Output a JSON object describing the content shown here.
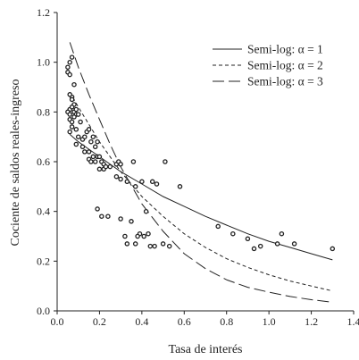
{
  "chart_data": {
    "type": "scatter",
    "title": "",
    "xlabel": "Tasa de interés",
    "ylabel": "Cociente de saldos reales-ingreso",
    "xlim": [
      0,
      1.4
    ],
    "ylim": [
      0,
      1.2
    ],
    "x_ticks": [
      "0.0",
      "0.2",
      "0.4",
      "0.6",
      "0.8",
      "1.0",
      "1.2",
      "1.4"
    ],
    "y_ticks": [
      "0.0",
      "0.2",
      "0.4",
      "0.6",
      "0.8",
      "1.0",
      "1.2"
    ],
    "grid": false,
    "legend_position": "top-right",
    "scatter": {
      "name": "observations",
      "points": [
        [
          0.05,
          0.96
        ],
        [
          0.05,
          0.98
        ],
        [
          0.06,
          1.0
        ],
        [
          0.07,
          1.02
        ],
        [
          0.06,
          0.95
        ],
        [
          0.08,
          0.91
        ],
        [
          0.07,
          0.86
        ],
        [
          0.06,
          0.87
        ],
        [
          0.07,
          0.85
        ],
        [
          0.08,
          0.83
        ],
        [
          0.06,
          0.81
        ],
        [
          0.05,
          0.8
        ],
        [
          0.06,
          0.79
        ],
        [
          0.07,
          0.82
        ],
        [
          0.08,
          0.8
        ],
        [
          0.09,
          0.79
        ],
        [
          0.06,
          0.77
        ],
        [
          0.07,
          0.76
        ],
        [
          0.08,
          0.78
        ],
        [
          0.09,
          0.81
        ],
        [
          0.1,
          0.79
        ],
        [
          0.07,
          0.74
        ],
        [
          0.06,
          0.72
        ],
        [
          0.09,
          0.73
        ],
        [
          0.11,
          0.76
        ],
        [
          0.1,
          0.7
        ],
        [
          0.12,
          0.69
        ],
        [
          0.13,
          0.7
        ],
        [
          0.14,
          0.72
        ],
        [
          0.15,
          0.73
        ],
        [
          0.09,
          0.67
        ],
        [
          0.12,
          0.66
        ],
        [
          0.13,
          0.64
        ],
        [
          0.15,
          0.64
        ],
        [
          0.16,
          0.68
        ],
        [
          0.17,
          0.7
        ],
        [
          0.18,
          0.66
        ],
        [
          0.19,
          0.68
        ],
        [
          0.15,
          0.61
        ],
        [
          0.16,
          0.6
        ],
        [
          0.17,
          0.62
        ],
        [
          0.18,
          0.6
        ],
        [
          0.19,
          0.62
        ],
        [
          0.2,
          0.62
        ],
        [
          0.21,
          0.6
        ],
        [
          0.22,
          0.59
        ],
        [
          0.2,
          0.57
        ],
        [
          0.22,
          0.57
        ],
        [
          0.23,
          0.58
        ],
        [
          0.25,
          0.58
        ],
        [
          0.28,
          0.59
        ],
        [
          0.29,
          0.6
        ],
        [
          0.3,
          0.59
        ],
        [
          0.36,
          0.6
        ],
        [
          0.28,
          0.54
        ],
        [
          0.3,
          0.53
        ],
        [
          0.33,
          0.52
        ],
        [
          0.4,
          0.52
        ],
        [
          0.37,
          0.5
        ],
        [
          0.45,
          0.52
        ],
        [
          0.47,
          0.51
        ],
        [
          0.51,
          0.6
        ],
        [
          0.58,
          0.5
        ],
        [
          0.19,
          0.41
        ],
        [
          0.21,
          0.38
        ],
        [
          0.24,
          0.38
        ],
        [
          0.3,
          0.37
        ],
        [
          0.35,
          0.36
        ],
        [
          0.42,
          0.4
        ],
        [
          0.39,
          0.31
        ],
        [
          0.41,
          0.3
        ],
        [
          0.43,
          0.31
        ],
        [
          0.38,
          0.3
        ],
        [
          0.32,
          0.3
        ],
        [
          0.33,
          0.27
        ],
        [
          0.37,
          0.27
        ],
        [
          0.44,
          0.26
        ],
        [
          0.46,
          0.26
        ],
        [
          0.53,
          0.26
        ],
        [
          0.5,
          0.27
        ],
        [
          0.76,
          0.34
        ],
        [
          0.83,
          0.31
        ],
        [
          0.9,
          0.29
        ],
        [
          0.93,
          0.25
        ],
        [
          0.96,
          0.26
        ],
        [
          1.04,
          0.27
        ],
        [
          1.06,
          0.31
        ],
        [
          1.12,
          0.27
        ],
        [
          1.3,
          0.25
        ]
      ]
    },
    "series": [
      {
        "name": "Semi-log: α = 1",
        "dash": "solid",
        "x": [
          0.06,
          0.1,
          0.15,
          0.2,
          0.3,
          0.4,
          0.5,
          0.6,
          0.7,
          0.8,
          0.9,
          1.0,
          1.1,
          1.2,
          1.3
        ],
        "values": [
          0.71,
          0.68,
          0.65,
          0.62,
          0.56,
          0.51,
          0.46,
          0.42,
          0.38,
          0.345,
          0.31,
          0.28,
          0.255,
          0.23,
          0.205
        ]
      },
      {
        "name": "Semi-log: α = 2",
        "dash": "short",
        "x": [
          0.06,
          0.1,
          0.15,
          0.2,
          0.3,
          0.4,
          0.5,
          0.6,
          0.7,
          0.8,
          0.9,
          1.0,
          1.1,
          1.2,
          1.3
        ],
        "values": [
          0.88,
          0.82,
          0.75,
          0.68,
          0.56,
          0.46,
          0.38,
          0.31,
          0.255,
          0.21,
          0.175,
          0.145,
          0.12,
          0.1,
          0.08
        ]
      },
      {
        "name": "Semi-log: α = 3",
        "dash": "long",
        "x": [
          0.06,
          0.1,
          0.15,
          0.2,
          0.25,
          0.3,
          0.4,
          0.5,
          0.6,
          0.7,
          0.8,
          0.9,
          1.0,
          1.1,
          1.2,
          1.3
        ],
        "values": [
          1.08,
          0.98,
          0.87,
          0.77,
          0.67,
          0.58,
          0.43,
          0.32,
          0.23,
          0.17,
          0.125,
          0.095,
          0.075,
          0.058,
          0.045,
          0.035
        ]
      }
    ]
  }
}
